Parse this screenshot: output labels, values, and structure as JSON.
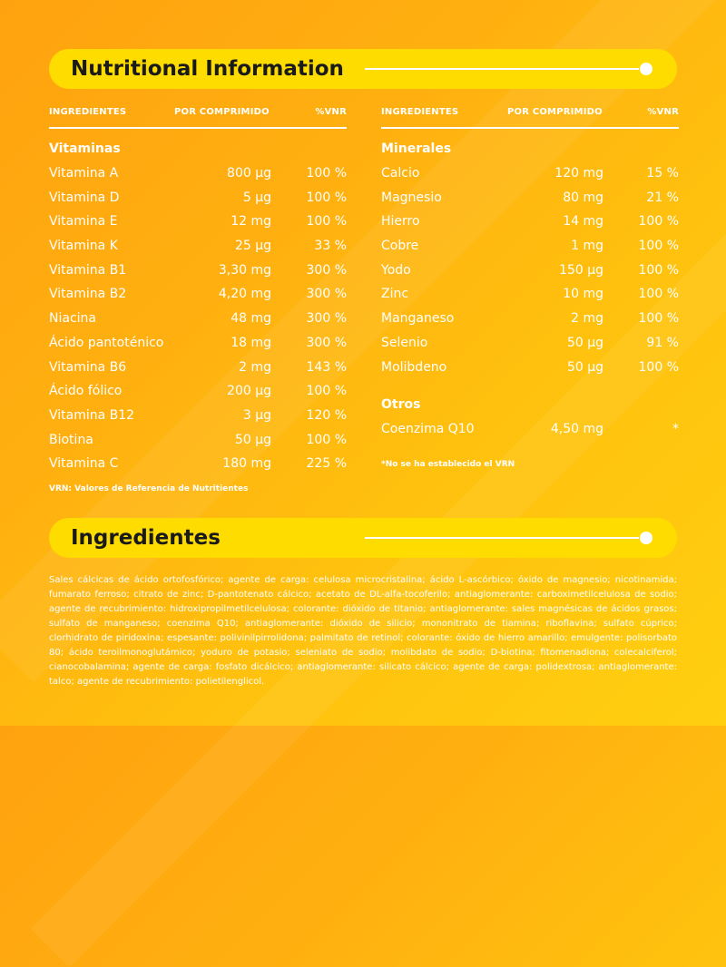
{
  "nutrition": {
    "title": "Nutritional Information",
    "headers": {
      "ingredient": "INGREDIENTES",
      "per_tablet": "POR COMPRIMIDO",
      "vnr": "%VNR"
    },
    "vitamins": {
      "title": "Vitaminas",
      "items": [
        {
          "name": "Vitamina A",
          "amount": "800 µg",
          "vnr": "100 %"
        },
        {
          "name": "Vitamina D",
          "amount": "5 µg",
          "vnr": "100 %"
        },
        {
          "name": "Vitamina E",
          "amount": "12 mg",
          "vnr": "100 %"
        },
        {
          "name": "Vitamina K",
          "amount": "25 µg",
          "vnr": "33 %"
        },
        {
          "name": "Vitamina B1",
          "amount": "3,30 mg",
          "vnr": "300 %"
        },
        {
          "name": "Vitamina B2",
          "amount": "4,20 mg",
          "vnr": "300 %"
        },
        {
          "name": "Niacina",
          "amount": "48 mg",
          "vnr": "300 %"
        },
        {
          "name": "Ácido pantoténico",
          "amount": "18 mg",
          "vnr": "300 %"
        },
        {
          "name": "Vitamina B6",
          "amount": "2 mg",
          "vnr": "143 %"
        },
        {
          "name": "Ácido fólico",
          "amount": "200 µg",
          "vnr": "100 %"
        },
        {
          "name": "Vitamina B12",
          "amount": "3 µg",
          "vnr": "120 %"
        },
        {
          "name": "Biotina",
          "amount": "50 µg",
          "vnr": "100 %"
        },
        {
          "name": "Vitamina C",
          "amount": "180 mg",
          "vnr": "225 %"
        }
      ]
    },
    "minerals": {
      "title": "Minerales",
      "items": [
        {
          "name": "Calcio",
          "amount": "120 mg",
          "vnr": "15 %"
        },
        {
          "name": "Magnesio",
          "amount": "80 mg",
          "vnr": "21 %"
        },
        {
          "name": "Hierro",
          "amount": "14 mg",
          "vnr": "100 %"
        },
        {
          "name": "Cobre",
          "amount": "1 mg",
          "vnr": "100 %"
        },
        {
          "name": "Yodo",
          "amount": "150 µg",
          "vnr": "100 %"
        },
        {
          "name": "Zinc",
          "amount": "10 mg",
          "vnr": "100 %"
        },
        {
          "name": "Manganeso",
          "amount": "2 mg",
          "vnr": "100 %"
        },
        {
          "name": "Selenio",
          "amount": "50 µg",
          "vnr": "91 %"
        },
        {
          "name": "Molibdeno",
          "amount": "50 µg",
          "vnr": "100 %"
        }
      ]
    },
    "others": {
      "title": "Otros",
      "items": [
        {
          "name": "Coenzima Q10",
          "amount": "4,50 mg",
          "vnr": "*"
        }
      ]
    },
    "vnr_footnote": "VRN: Valores de Referencia de Nutritientes",
    "asterisk_note": "*No se ha establecido el VRN"
  },
  "ingredients": {
    "title": "Ingredientes",
    "text": "Sales cálcicas de ácido ortofosfórico; agente de carga: celulosa microcristalina; ácido L-ascórbico; óxido de magnesio; nicotinamida; fumarato ferroso; citrato de zinc; D-pantotenato cálcico; acetato de DL-alfa-tocoferilo; antiaglomerante: carboximetilcelulosa de sodio; agente de recubrimiento: hidroxipropilmetilcelulosa; colorante: dióxido de titanio; antiaglomerante: sales magnésicas de ácidos grasos; sulfato de manganeso; coenzima Q10; antiaglomerante: dióxido de silicio; mononitrato de tiamina; riboflavina; sulfato cúprico; clorhidrato de piridoxina; espesante: polivinilpirrolidona; palmitato de retinol; colorante: óxido de hierro amarillo; emulgente: polisorbato 80; ácido teroilmonoglutámico; yoduro de potasio; seleniato de sodio; molibdato de sodio; D-biotina; fitomenadiona; colecalciferol; cianocobalamina; agente de carga: fosfato dicálcico; antiaglomerante: silicato cálcico; agente de carga: polidextrosa; antiaglomerante: talco; agente de recubrimiento: polietilenglicol."
  },
  "colors": {
    "banner": "#ffdc00",
    "background": "#ffb010",
    "text": "#ffffff",
    "title": "#1a1a1a"
  }
}
